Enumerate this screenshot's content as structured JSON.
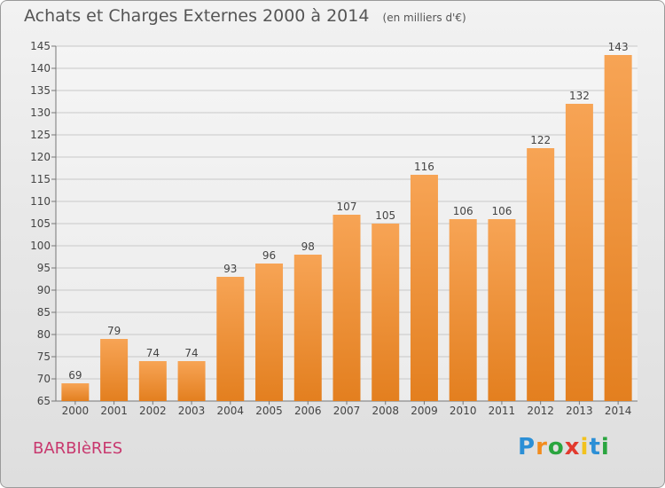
{
  "chart_data": {
    "type": "bar",
    "title": "Achats et Charges Externes 2000 à 2014",
    "subtitle": "(en milliers d'€)",
    "categories": [
      "2000",
      "2001",
      "2002",
      "2003",
      "2004",
      "2005",
      "2006",
      "2007",
      "2008",
      "2009",
      "2010",
      "2011",
      "2012",
      "2013",
      "2014"
    ],
    "values": [
      69,
      79,
      74,
      74,
      93,
      96,
      98,
      107,
      105,
      116,
      106,
      106,
      122,
      132,
      143
    ],
    "ylim": [
      65,
      145
    ],
    "yticks": [
      65,
      70,
      75,
      80,
      85,
      90,
      95,
      100,
      105,
      110,
      115,
      120,
      125,
      130,
      135,
      140,
      145
    ],
    "grid": true,
    "bar_color": "#f0913a"
  },
  "footer": {
    "place": "BARBIèRES",
    "brand": "Proxiti",
    "brand_letters": [
      "P",
      "r",
      "o",
      "x",
      "i",
      "t",
      "i"
    ],
    "brand_colors": [
      "#2b8fd6",
      "#f28c1e",
      "#2aa53f",
      "#e23a2e",
      "#f2c21e",
      "#2b8fd6",
      "#2aa53f"
    ]
  }
}
